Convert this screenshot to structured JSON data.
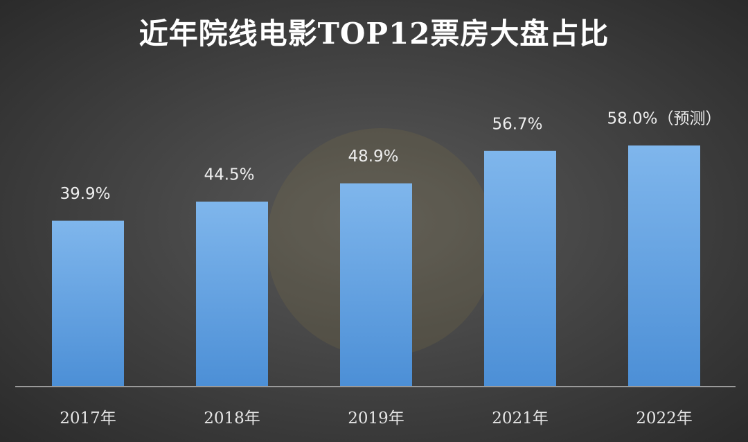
{
  "chart_data": {
    "type": "bar",
    "title": "近年院线电影TOP12票房大盘占比",
    "categories": [
      "2017年",
      "2018年",
      "2019年",
      "2021年",
      "2022年"
    ],
    "values": [
      39.9,
      44.5,
      48.9,
      56.7,
      58.0
    ],
    "value_labels": [
      "39.9%",
      "44.5%",
      "48.9%",
      "56.7%",
      "58.0%（预测）"
    ],
    "color": "url(#barfill)",
    "ylim": [
      0,
      70
    ]
  }
}
